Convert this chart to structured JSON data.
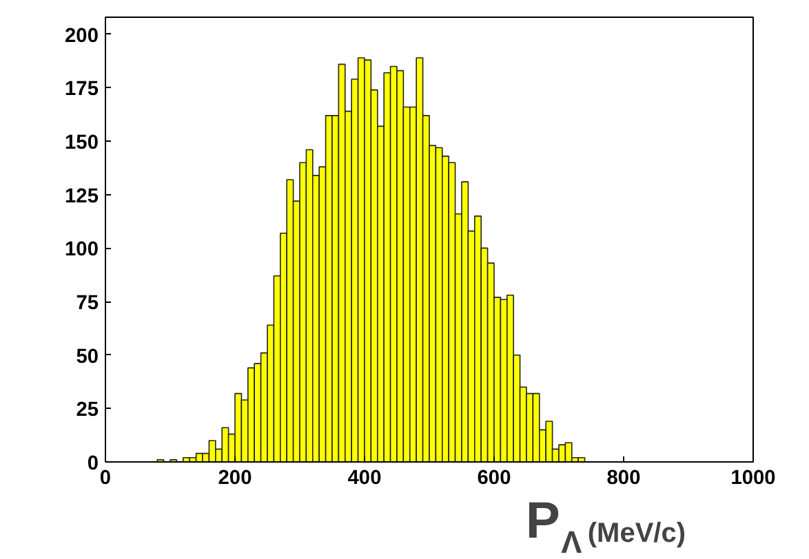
{
  "chart_data": {
    "type": "histogram",
    "xlabel": "P$_{Λ}$ (MeV/c)",
    "color": "#ffff00",
    "bins": [
      0,
      10,
      20,
      30,
      40,
      50,
      60,
      70,
      80,
      90,
      100,
      110,
      120,
      130,
      140,
      150,
      160,
      170,
      180,
      190,
      200,
      210,
      220,
      230,
      240,
      250,
      260,
      270,
      280,
      290,
      300,
      310,
      320,
      330,
      340,
      350,
      360,
      370,
      380,
      390,
      400,
      410,
      420,
      430,
      440,
      450,
      460,
      470,
      480,
      490,
      500,
      510,
      520,
      530,
      540,
      550,
      560,
      570,
      580,
      590,
      600,
      610,
      620,
      630,
      640,
      650,
      660,
      670,
      680,
      690,
      700,
      710,
      720,
      730,
      740,
      750,
      760,
      770,
      780,
      790,
      800,
      810,
      820,
      830,
      840,
      850,
      860,
      870,
      880,
      890,
      900,
      910,
      920,
      930,
      940,
      950,
      960,
      970,
      980,
      990,
      1000
    ],
    "values": [
      0,
      0,
      0,
      0,
      0,
      0,
      0,
      0,
      1,
      0,
      1,
      0,
      2,
      2,
      4,
      4,
      10,
      6,
      16,
      13,
      32,
      29,
      44,
      46,
      51,
      64,
      87,
      107,
      132,
      122,
      140,
      146,
      134,
      138,
      162,
      162,
      186,
      164,
      179,
      189,
      188,
      174,
      157,
      182,
      185,
      183,
      166,
      166,
      189,
      162,
      148,
      147,
      143,
      140,
      116,
      131,
      108,
      115,
      100,
      93,
      77,
      76,
      78,
      50,
      35,
      32,
      32,
      15,
      19,
      6,
      8,
      9,
      2,
      2,
      0,
      0,
      0,
      0,
      0,
      0,
      0,
      0,
      0,
      0,
      0,
      0,
      0,
      0,
      0,
      0,
      0,
      0,
      0,
      0,
      0,
      0,
      0,
      0,
      0,
      0
    ],
    "xlim": [
      0,
      1000
    ],
    "xticks": [
      0,
      200,
      400,
      600,
      800,
      1000
    ],
    "ylim": [
      0,
      208
    ],
    "yticks": [
      0,
      25,
      50,
      75,
      100,
      125,
      150,
      175,
      200
    ],
    "grid": false
  }
}
